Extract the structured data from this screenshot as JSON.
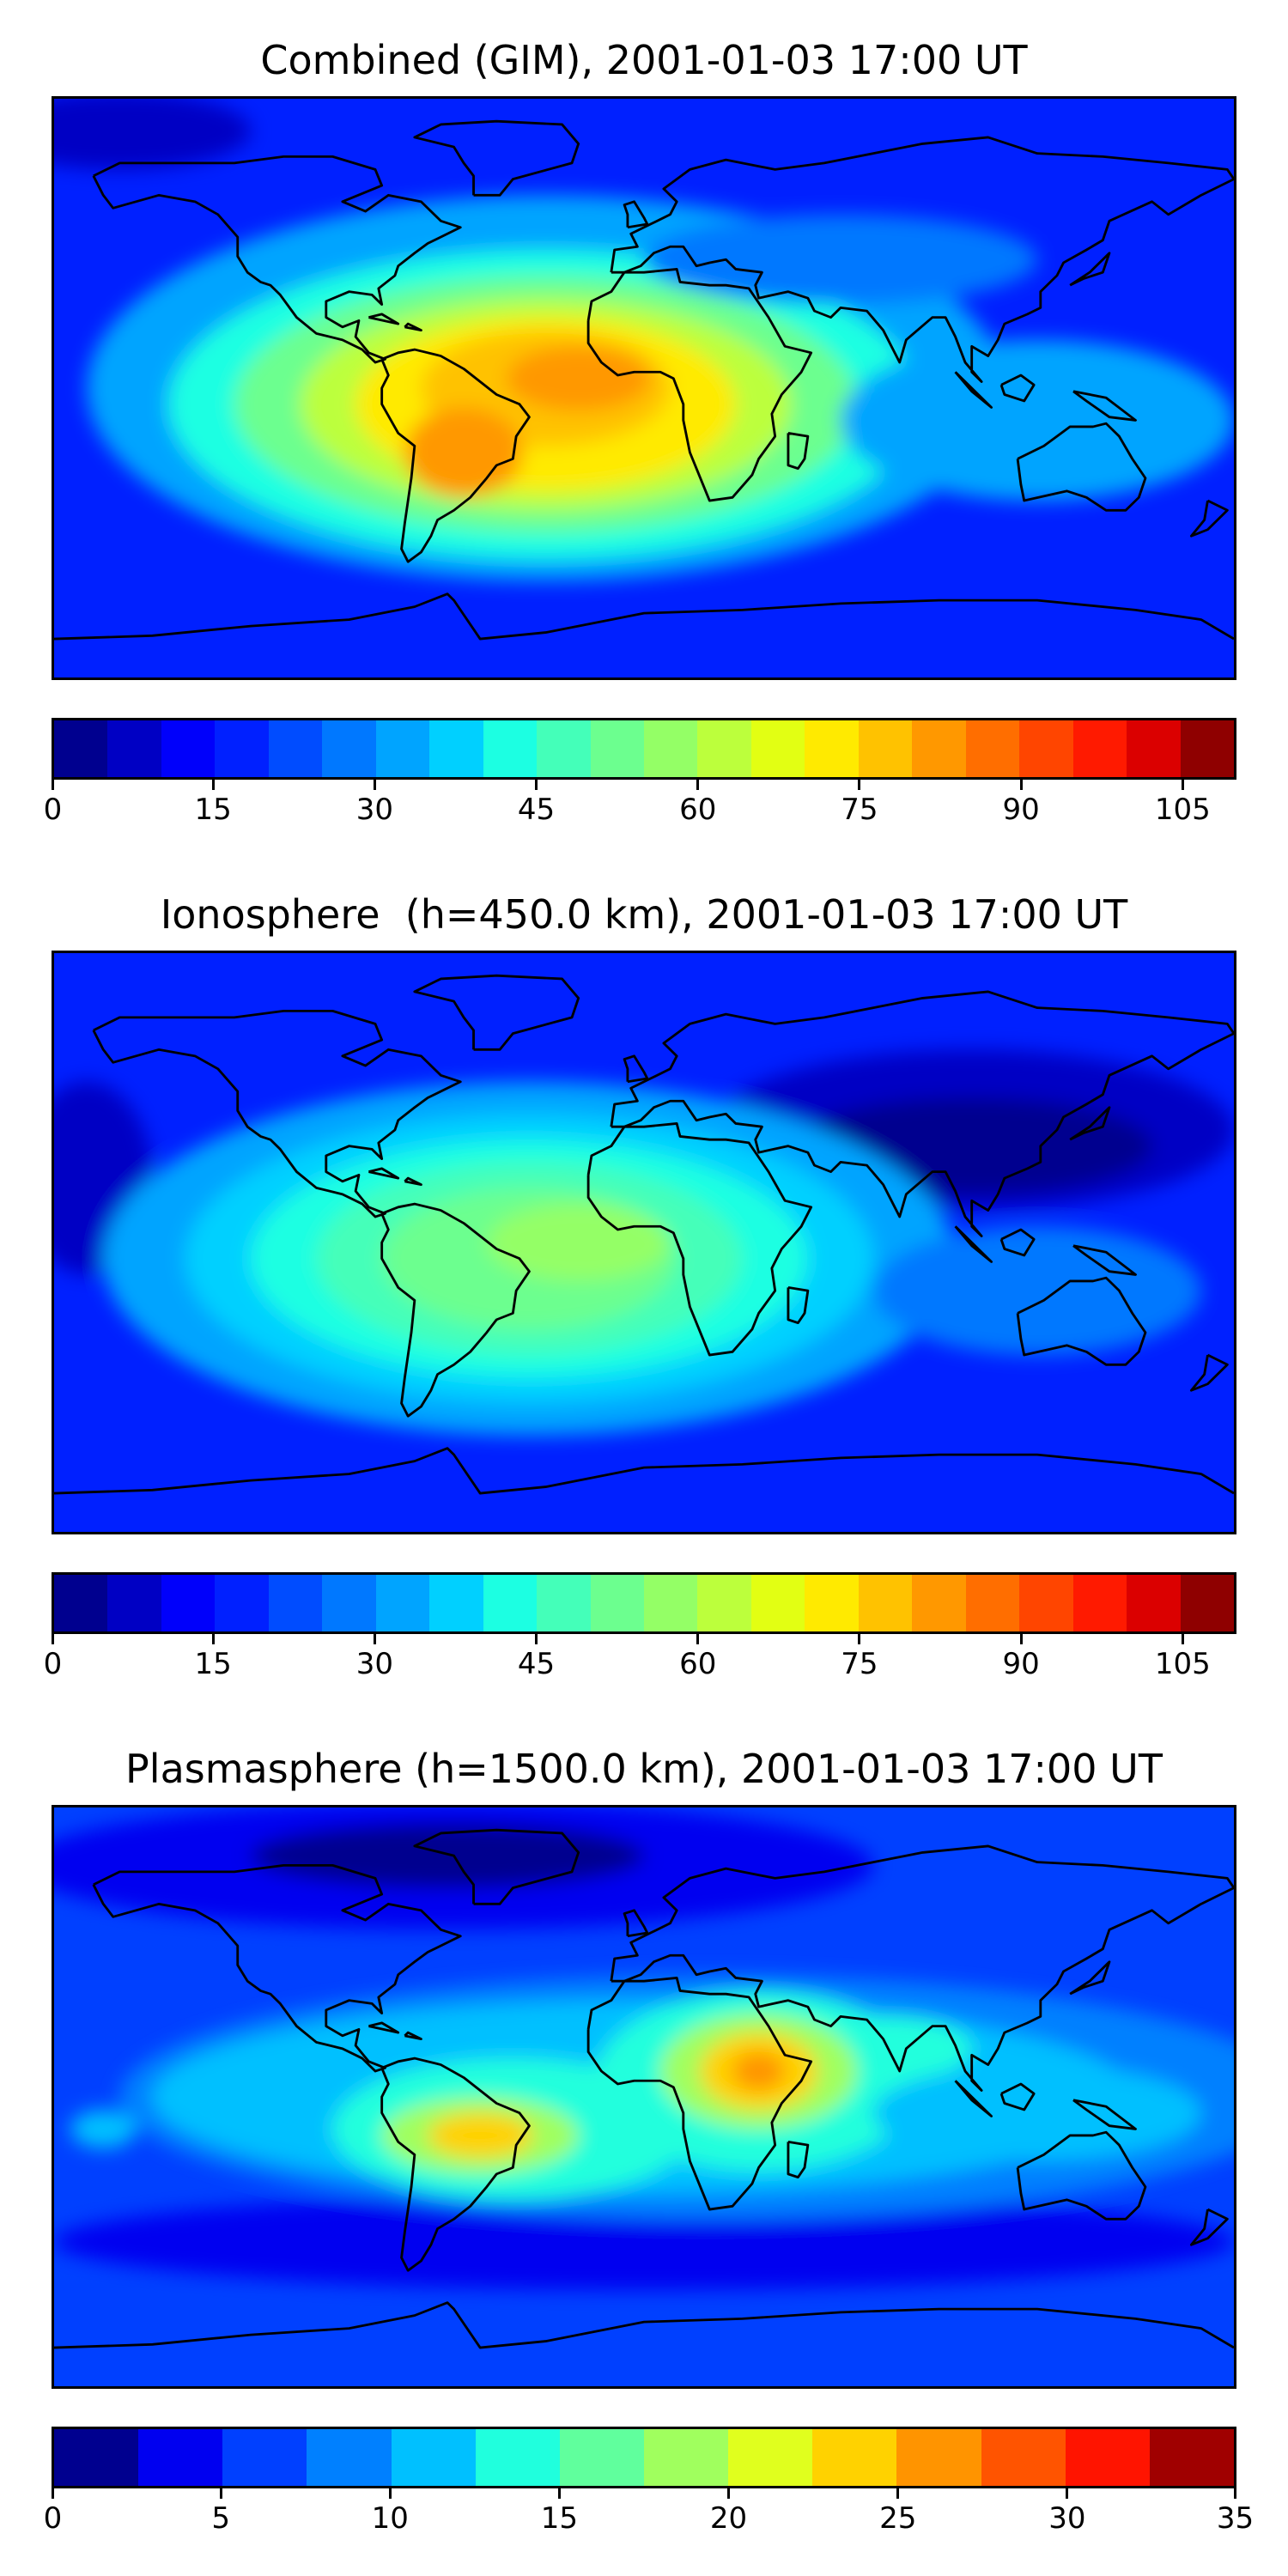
{
  "colors": {
    "jet_levels": [
      "#00008f",
      "#0000c4",
      "#0000fb",
      "#0020ff",
      "#004cff",
      "#0078ff",
      "#00a4ff",
      "#00d0ff",
      "#1cffe2",
      "#44ffb9",
      "#6cff8f",
      "#94ff66",
      "#bcff3c",
      "#e2ff13",
      "#ffea00",
      "#ffc200",
      "#ff9800",
      "#ff6e00",
      "#ff4500",
      "#ff1a00",
      "#db0000",
      "#8f0000"
    ],
    "plasma_levels": [
      "#00008f",
      "#0000f0",
      "#0040ff",
      "#0080ff",
      "#00c0ff",
      "#20ffdd",
      "#60ff9d",
      "#a0ff5e",
      "#e0ff1e",
      "#ffd200",
      "#ff9400",
      "#ff5400",
      "#ff1400",
      "#a00000"
    ],
    "coastline": "#000000"
  },
  "panels": [
    {
      "id": "combined",
      "title": "Combined (GIM), 2001-01-03 17:00 UT",
      "colorbar": {
        "ticks": [
          "0",
          "15",
          "30",
          "45",
          "60",
          "75",
          "90",
          "105"
        ],
        "range": [
          0,
          110
        ],
        "levels": 22
      },
      "map": {
        "background": "#0020ff",
        "blobs": [
          {
            "lon": -160,
            "lat": 80,
            "rx": 40,
            "ry": 12,
            "level": 1
          },
          {
            "lon": -30,
            "lat": 0,
            "rx": 140,
            "ry": 60,
            "level": 6
          },
          {
            "lon": -30,
            "lat": -5,
            "rx": 115,
            "ry": 48,
            "level": 8
          },
          {
            "lon": -30,
            "lat": -5,
            "rx": 95,
            "ry": 40,
            "level": 10
          },
          {
            "lon": -30,
            "lat": -5,
            "rx": 75,
            "ry": 33,
            "level": 12
          },
          {
            "lon": -30,
            "lat": -5,
            "rx": 58,
            "ry": 27,
            "level": 14
          },
          {
            "lon": -30,
            "lat": 0,
            "rx": 38,
            "ry": 18,
            "level": 15
          },
          {
            "lon": -20,
            "lat": 3,
            "rx": 22,
            "ry": 10,
            "level": 16
          },
          {
            "lon": -55,
            "lat": -20,
            "rx": 18,
            "ry": 14,
            "level": 16
          },
          {
            "lon": 120,
            "lat": -10,
            "rx": 60,
            "ry": 25,
            "level": 6
          },
          {
            "lon": 60,
            "lat": 40,
            "rx": 60,
            "ry": 14,
            "level": 5
          }
        ]
      }
    },
    {
      "id": "ionosphere",
      "title": "Ionosphere  (h=450.0 km), 2001-01-03 17:00 UT",
      "colorbar": {
        "ticks": [
          "0",
          "15",
          "30",
          "45",
          "60",
          "75",
          "90",
          "105"
        ],
        "range": [
          0,
          110
        ],
        "levels": 22
      },
      "map": {
        "background": "#0020ff",
        "blobs": [
          {
            "lon": -170,
            "lat": 20,
            "rx": 20,
            "ry": 30,
            "level": 1
          },
          {
            "lon": 100,
            "lat": 35,
            "rx": 80,
            "ry": 25,
            "level": 1
          },
          {
            "lon": 100,
            "lat": 30,
            "rx": 55,
            "ry": 15,
            "level": 0
          },
          {
            "lon": -35,
            "lat": -5,
            "rx": 130,
            "ry": 55,
            "level": 6
          },
          {
            "lon": -35,
            "lat": -5,
            "rx": 105,
            "ry": 45,
            "level": 7
          },
          {
            "lon": -35,
            "lat": -5,
            "rx": 85,
            "ry": 37,
            "level": 8
          },
          {
            "lon": -35,
            "lat": -5,
            "rx": 65,
            "ry": 30,
            "level": 9
          },
          {
            "lon": -35,
            "lat": -5,
            "rx": 45,
            "ry": 22,
            "level": 10
          },
          {
            "lon": -20,
            "lat": 0,
            "rx": 28,
            "ry": 12,
            "level": 11
          },
          {
            "lon": 120,
            "lat": -15,
            "rx": 50,
            "ry": 20,
            "level": 5
          }
        ]
      }
    },
    {
      "id": "plasmasphere",
      "title": "Plasmasphere (h=1500.0 km), 2001-01-03 17:00 UT",
      "colorbar": {
        "ticks": [
          "0",
          "5",
          "10",
          "15",
          "20",
          "25",
          "30",
          "35"
        ],
        "range": [
          0,
          35
        ],
        "levels": 14
      },
      "map": {
        "background": "#0040ff",
        "blobs": [
          {
            "lon": -60,
            "lat": 72,
            "rx": 130,
            "ry": 20,
            "level": 1
          },
          {
            "lon": -60,
            "lat": 75,
            "rx": 60,
            "ry": 10,
            "level": 0
          },
          {
            "lon": 0,
            "lat": -45,
            "rx": 180,
            "ry": 15,
            "level": 1
          },
          {
            "lon": 20,
            "lat": 0,
            "rx": 180,
            "ry": 38,
            "level": 3
          },
          {
            "lon": 0,
            "lat": 0,
            "rx": 150,
            "ry": 30,
            "level": 4
          },
          {
            "lon": -40,
            "lat": -10,
            "rx": 55,
            "ry": 22,
            "level": 5
          },
          {
            "lon": 35,
            "lat": 5,
            "rx": 50,
            "ry": 28,
            "level": 5
          },
          {
            "lon": 75,
            "lat": 15,
            "rx": 25,
            "ry": 10,
            "level": 5
          },
          {
            "lon": -50,
            "lat": -12,
            "rx": 30,
            "ry": 12,
            "level": 7
          },
          {
            "lon": -50,
            "lat": -12,
            "rx": 16,
            "ry": 7,
            "level": 9
          },
          {
            "lon": 35,
            "lat": 8,
            "rx": 30,
            "ry": 18,
            "level": 7
          },
          {
            "lon": 35,
            "lat": 8,
            "rx": 18,
            "ry": 12,
            "level": 9
          },
          {
            "lon": 35,
            "lat": 8,
            "rx": 8,
            "ry": 6,
            "level": 10
          },
          {
            "lon": 120,
            "lat": -5,
            "rx": 50,
            "ry": 15,
            "level": 4
          },
          {
            "lon": -165,
            "lat": -10,
            "rx": 10,
            "ry": 6,
            "level": 4
          }
        ]
      }
    }
  ]
}
